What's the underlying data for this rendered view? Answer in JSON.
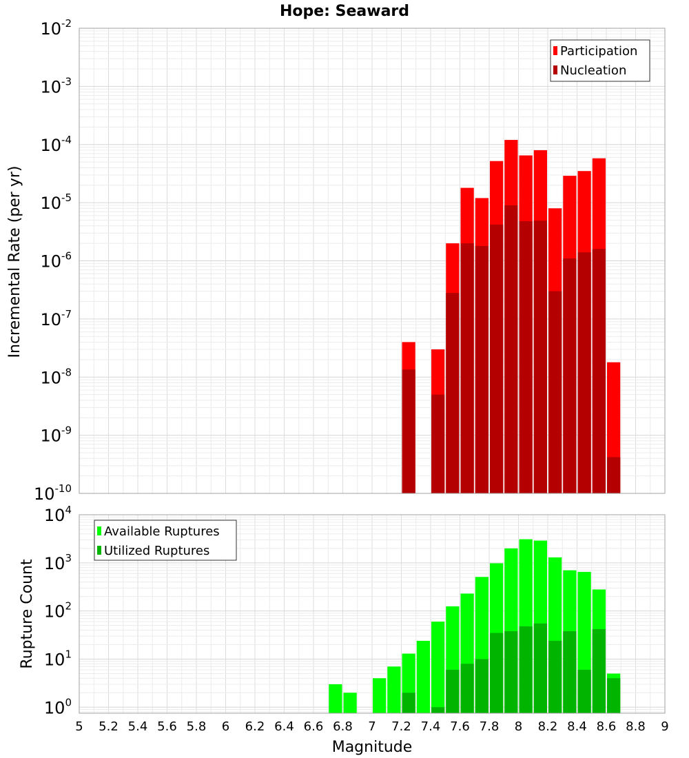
{
  "title": "Hope: Seaward",
  "x_axis": {
    "label": "Magnitude",
    "ticks": [
      "5",
      "5.2",
      "5.4",
      "5.6",
      "5.8",
      "6",
      "6.2",
      "6.4",
      "6.6",
      "6.8",
      "7",
      "7.2",
      "7.4",
      "7.6",
      "7.8",
      "8",
      "8.2",
      "8.4",
      "8.6",
      "8.8",
      "9"
    ]
  },
  "colors": {
    "participation": "#ff0000",
    "nucleation": "#b40000",
    "available": "#00ff00",
    "utilized": "#00b400"
  },
  "chart_data": [
    {
      "type": "bar",
      "title": "Hope: Seaward",
      "xlabel": "Magnitude",
      "ylabel": "Incremental Rate (per yr)",
      "yscale": "log",
      "xlim": [
        5,
        9
      ],
      "ylim": [
        1e-10,
        0.01
      ],
      "y_tick_exponents": [
        -2,
        -3,
        -4,
        -5,
        -6,
        -7,
        -8,
        -9,
        -10
      ],
      "grid": true,
      "legend_position": "top-right",
      "bin_width": 0.1,
      "x": [
        7.25,
        7.45,
        7.55,
        7.65,
        7.75,
        7.85,
        7.95,
        8.05,
        8.15,
        8.25,
        8.35,
        8.45,
        8.55,
        8.65
      ],
      "series": [
        {
          "name": "Participation",
          "values": [
            4e-08,
            3e-08,
            2e-06,
            1.8e-05,
            1.2e-05,
            5.2e-05,
            0.00012,
            6.5e-05,
            8e-05,
            8e-06,
            2.9e-05,
            3.5e-05,
            5.8e-05,
            1.8e-08
          ]
        },
        {
          "name": "Nucleation",
          "values": [
            1.35e-08,
            5e-09,
            2.8e-07,
            2e-06,
            1.8e-06,
            4.2e-06,
            9e-06,
            4.8e-06,
            4.9e-06,
            3e-07,
            1.1e-06,
            1.4e-06,
            1.6e-06,
            4.2e-10
          ]
        }
      ]
    },
    {
      "type": "bar",
      "xlabel": "Magnitude",
      "ylabel": "Rupture Count",
      "yscale": "log",
      "xlim": [
        5,
        9
      ],
      "ylim": [
        0.75,
        10000
      ],
      "y_tick_exponents": [
        4,
        3,
        2,
        1,
        0
      ],
      "grid": true,
      "legend_position": "top-left",
      "bin_width": 0.1,
      "x": [
        6.75,
        6.85,
        7.05,
        7.15,
        7.25,
        7.35,
        7.45,
        7.55,
        7.65,
        7.75,
        7.85,
        7.95,
        8.05,
        8.15,
        8.25,
        8.35,
        8.45,
        8.55,
        8.65
      ],
      "series": [
        {
          "name": "Available Ruptures",
          "values": [
            3,
            2,
            4,
            7,
            13,
            24,
            60,
            125,
            230,
            510,
            980,
            2000,
            3100,
            2900,
            1300,
            700,
            650,
            280,
            5
          ]
        },
        {
          "name": "Utilized Ruptures",
          "values": [
            0,
            0,
            0,
            0,
            2,
            0,
            1,
            6,
            8,
            10,
            35,
            38,
            48,
            55,
            24,
            38,
            6,
            42,
            4
          ]
        }
      ]
    }
  ]
}
